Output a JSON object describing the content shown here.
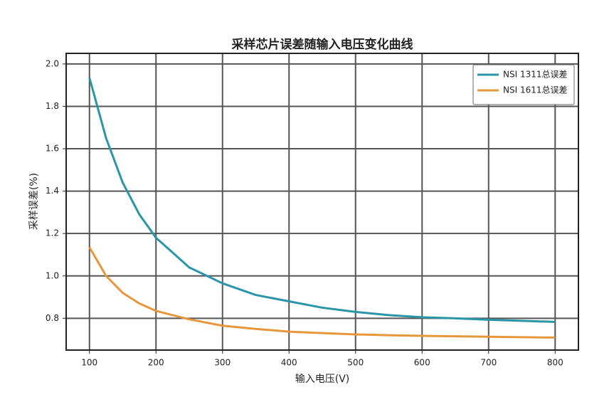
{
  "chart_data": {
    "type": "line",
    "title": "采样芯片误差随输入电压变化曲线",
    "x_label": "输入电压(V)",
    "y_label": "采样误差(%)",
    "x": [
      100,
      125,
      150,
      175,
      200,
      250,
      300,
      350,
      400,
      450,
      500,
      550,
      600,
      650,
      700,
      750,
      800
    ],
    "series": [
      {
        "name": "NSI 1311总误差",
        "color": "#2b95a8",
        "values": [
          1.935,
          1.65,
          1.44,
          1.29,
          1.18,
          1.04,
          0.965,
          0.91,
          0.88,
          0.85,
          0.83,
          0.815,
          0.805,
          0.8,
          0.793,
          0.788,
          0.783
        ]
      },
      {
        "name": "NSI 1611总误差",
        "color": "#e6973b",
        "values": [
          1.135,
          1.0,
          0.92,
          0.87,
          0.835,
          0.795,
          0.765,
          0.75,
          0.737,
          0.73,
          0.724,
          0.72,
          0.717,
          0.715,
          0.713,
          0.711,
          0.709
        ]
      }
    ],
    "xlim": [
      65,
      835
    ],
    "ylim": [
      0.65,
      2.05
    ],
    "xticks": [
      100,
      200,
      300,
      400,
      500,
      600,
      700,
      800
    ],
    "yticks": [
      0.8,
      {
        "value": 1.0,
        "label": "1.0"
      },
      1.2,
      1.4,
      1.6,
      1.8,
      {
        "value": 2.0,
        "label": "2.0"
      }
    ],
    "grid": true,
    "legend": "upper right"
  }
}
